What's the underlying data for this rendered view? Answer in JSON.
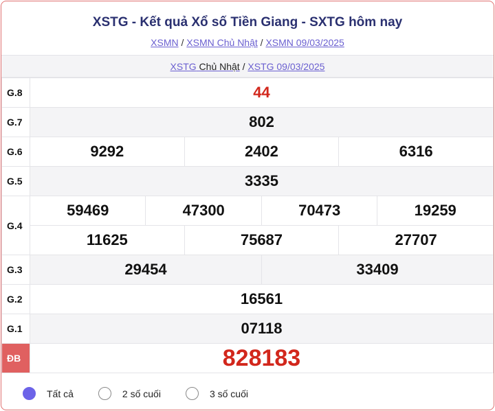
{
  "title": "XSTG - Kết quả Xổ số Tiền Giang - SXTG hôm nay",
  "breadcrumb": [
    "XSMN",
    "XSMN Chủ Nhật",
    "XSMN 09/03/2025"
  ],
  "sub": {
    "link1": "XSTG",
    "text1": "Chủ Nhật",
    "link2": "XSTG 09/03/2025"
  },
  "prizes": {
    "g8": {
      "label": "G.8",
      "values": [
        "44"
      ]
    },
    "g7": {
      "label": "G.7",
      "values": [
        "802"
      ]
    },
    "g6": {
      "label": "G.6",
      "values": [
        "9292",
        "2402",
        "6316"
      ]
    },
    "g5": {
      "label": "G.5",
      "values": [
        "3335"
      ]
    },
    "g4": {
      "label": "G.4",
      "values": [
        "59469",
        "47300",
        "70473",
        "19259",
        "11625",
        "75687",
        "27707"
      ]
    },
    "g3": {
      "label": "G.3",
      "values": [
        "29454",
        "33409"
      ]
    },
    "g2": {
      "label": "G.2",
      "values": [
        "16561"
      ]
    },
    "g1": {
      "label": "G.1",
      "values": [
        "07118"
      ]
    },
    "db": {
      "label": "ĐB",
      "values": [
        "828183"
      ]
    }
  },
  "filter": {
    "options": [
      "Tất cả",
      "2 số cuối",
      "3 số cuối"
    ],
    "selected": "Tất cả"
  },
  "colors": {
    "accent": "#6c63e8",
    "prize_red": "#d2271c",
    "db_bg": "#e06060",
    "title": "#2a3070"
  }
}
